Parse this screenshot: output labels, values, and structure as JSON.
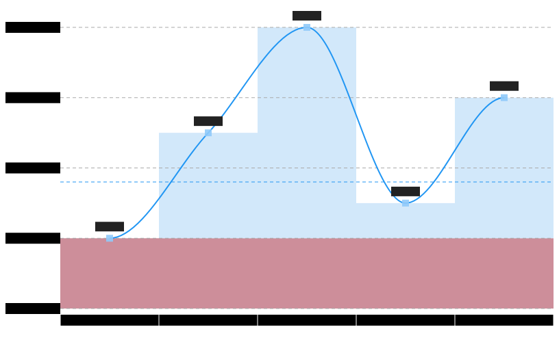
{
  "chart_data": {
    "type": "line",
    "title": "",
    "subtitle": "",
    "xlabel": "",
    "ylabel": "",
    "categories": [
      "",
      "",
      "",
      "",
      ""
    ],
    "ylim": [
      0,
      4
    ],
    "y_ticks": [
      0,
      1,
      2,
      3,
      4
    ],
    "y_tick_labels": [
      "",
      "",
      "",
      "",
      ""
    ],
    "grid": true,
    "legend": "none",
    "series": [
      {
        "values": [
          1.0,
          2.5,
          4.0,
          1.5,
          3.0
        ],
        "color": "#2196f3",
        "data_labels": [
          "",
          "",
          "",
          "",
          ""
        ]
      }
    ],
    "bands": [
      {
        "from": 0,
        "to": 1,
        "color": "#cd8e9a"
      }
    ],
    "reference_line": {
      "value": 1.8,
      "color": "#2196f3"
    },
    "step_area_color": "#d2e8fa",
    "label_box_color": "#222222",
    "tick_box_color": "#000000"
  }
}
